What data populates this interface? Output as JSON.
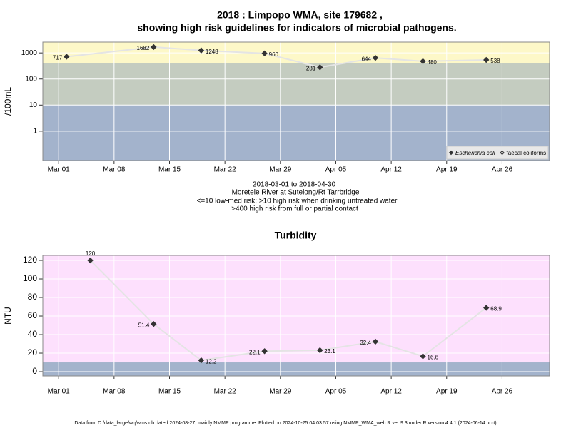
{
  "chart_data": [
    {
      "type": "line",
      "title": [
        "2018 : Limpopo WMA, site 179682 ,",
        "showing high risk guidelines for indicators of microbial pathogens."
      ],
      "ylabel": "/100mL",
      "log_y": true,
      "ylim": [
        0.075,
        2600
      ],
      "yticks": [
        1,
        10,
        100,
        1000
      ],
      "xlim": [
        "2018-02-27",
        "2018-05-02"
      ],
      "xticks": [
        {
          "value": "2018-03-01",
          "label": "Mar 01"
        },
        {
          "value": "2018-03-08",
          "label": "Mar 08"
        },
        {
          "value": "2018-03-15",
          "label": "Mar 15"
        },
        {
          "value": "2018-03-22",
          "label": "Mar 22"
        },
        {
          "value": "2018-03-29",
          "label": "Mar 29"
        },
        {
          "value": "2018-04-05",
          "label": "Apr 05"
        },
        {
          "value": "2018-04-12",
          "label": "Apr 12"
        },
        {
          "value": "2018-04-19",
          "label": "Apr 19"
        },
        {
          "value": "2018-04-26",
          "label": "Apr 26"
        }
      ],
      "grid": true,
      "bands": [
        {
          "to": 10,
          "color": "#a3b3cc"
        },
        {
          "from": 10,
          "to": 400,
          "color": "#c4ccc0"
        },
        {
          "from": 400,
          "color": "#fdf8c8"
        }
      ],
      "x": [
        "2018-03-02",
        "2018-03-13",
        "2018-03-19",
        "2018-03-27",
        "2018-04-03",
        "2018-04-10",
        "2018-04-16",
        "2018-04-24"
      ],
      "series": [
        {
          "name": "Escherichia coli",
          "italic": true,
          "marker": "filled",
          "color": "#333333",
          "values": [
            717,
            1682,
            1248,
            960,
            281,
            644,
            480,
            538
          ]
        },
        {
          "name": "faecal coliforms",
          "italic": false,
          "marker": "open",
          "color": "#333333",
          "values": [
            null,
            null,
            null,
            null,
            null,
            null,
            null,
            null
          ]
        }
      ],
      "legend": "bottom-right",
      "notes": [
        "2018-03-01 to 2018-04-30",
        "Moretele River at Sutelong/Rt Tarrbridge",
        "<=10 low-med risk; >10 high risk when drinking untreated water",
        ">400 high risk from full or partial contact"
      ]
    },
    {
      "type": "line",
      "title": [
        "Turbidity"
      ],
      "ylabel": "NTU",
      "log_y": false,
      "ylim": [
        -4.6,
        125.4
      ],
      "yticks": [
        0,
        20,
        40,
        60,
        80,
        100,
        120
      ],
      "xlim": [
        "2018-02-27",
        "2018-05-02"
      ],
      "xticks": [
        {
          "value": "2018-03-01",
          "label": "Mar 01"
        },
        {
          "value": "2018-03-08",
          "label": "Mar 08"
        },
        {
          "value": "2018-03-15",
          "label": "Mar 15"
        },
        {
          "value": "2018-03-22",
          "label": "Mar 22"
        },
        {
          "value": "2018-03-29",
          "label": "Mar 29"
        },
        {
          "value": "2018-04-05",
          "label": "Apr 05"
        },
        {
          "value": "2018-04-12",
          "label": "Apr 12"
        },
        {
          "value": "2018-04-19",
          "label": "Apr 19"
        },
        {
          "value": "2018-04-26",
          "label": "Apr 26"
        }
      ],
      "grid": true,
      "bands": [
        {
          "to": 10,
          "color": "#a3b3cc"
        },
        {
          "from": 10,
          "color": "#fde0fd"
        }
      ],
      "x": [
        "2018-03-05",
        "2018-03-13",
        "2018-03-19",
        "2018-03-27",
        "2018-04-03",
        "2018-04-10",
        "2018-04-16",
        "2018-04-24"
      ],
      "color": "#333333",
      "marker": "filled",
      "values": [
        120,
        51.4,
        12.2,
        22.1,
        23.1,
        32.4,
        16.6,
        68.9
      ]
    }
  ],
  "footer": "Data from D:/data_large/wq/wms.db dated 2024-08-27, mainly NMMP programme. Plotted on 2024-10-25 04:03:57 using NMMP_WMA_web.R ver 9.3 under R version 4.4.1 (2024-06-14 ucrt)"
}
